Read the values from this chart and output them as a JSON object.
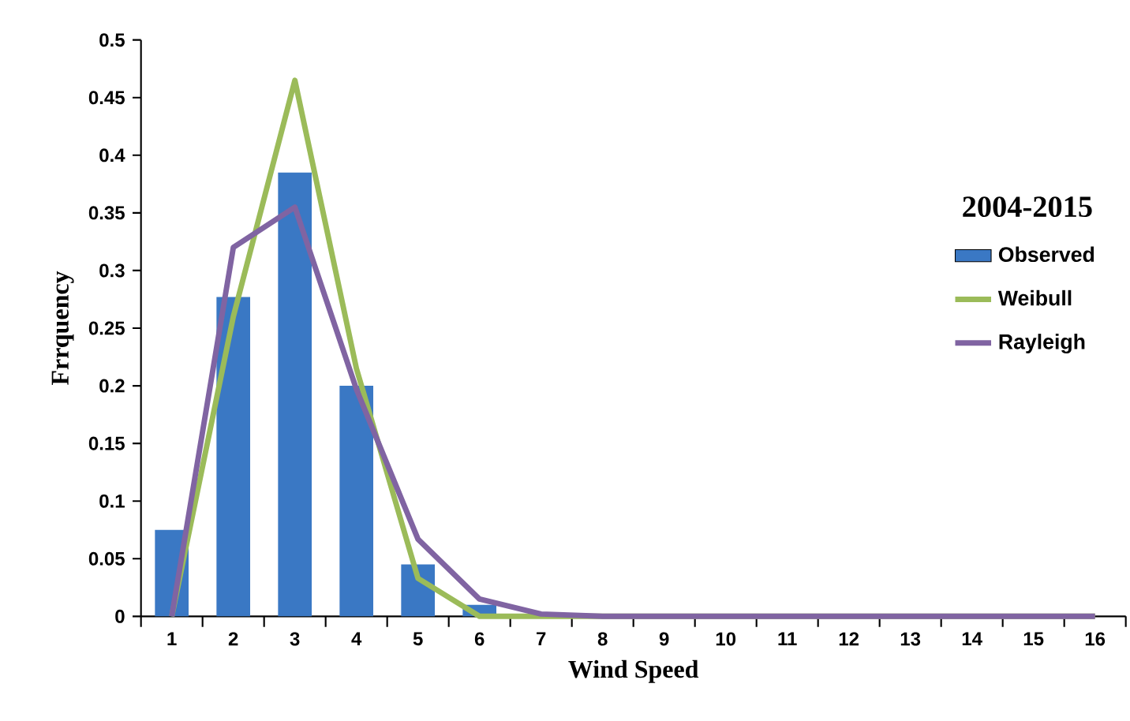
{
  "chart_data": {
    "type": "bar",
    "xlabel": "Wind Speed",
    "ylabel": "Frrquency",
    "legend_title": "2004-2015",
    "categories": [
      "1",
      "2",
      "3",
      "4",
      "5",
      "6",
      "7",
      "8",
      "9",
      "10",
      "11",
      "12",
      "13",
      "14",
      "15",
      "16"
    ],
    "series": [
      {
        "name": "Observed",
        "color": "#3a78c4",
        "values": [
          0.075,
          0.277,
          0.385,
          0.2,
          0.045,
          0.01,
          0,
          0,
          0,
          0,
          0,
          0,
          0,
          0,
          0,
          0
        ]
      },
      {
        "name": "Weibull",
        "type": "line",
        "color": "#9bbb59",
        "values": [
          0,
          0.26,
          0.465,
          0.215,
          0.033,
          0,
          0,
          0,
          0,
          0,
          0,
          0,
          0,
          0,
          0,
          0
        ]
      },
      {
        "name": "Rayleigh",
        "type": "line",
        "color": "#8064a2",
        "values": [
          0,
          0.32,
          0.355,
          0.197,
          0.067,
          0.015,
          0.002,
          0,
          0,
          0,
          0,
          0,
          0,
          0,
          0,
          0
        ]
      }
    ],
    "ylim": [
      0,
      0.5
    ],
    "yticks": [
      0,
      0.05,
      0.1,
      0.15,
      0.2,
      0.25,
      0.3,
      0.35,
      0.4,
      0.45,
      0.5
    ],
    "grid": false,
    "legend": "right"
  }
}
